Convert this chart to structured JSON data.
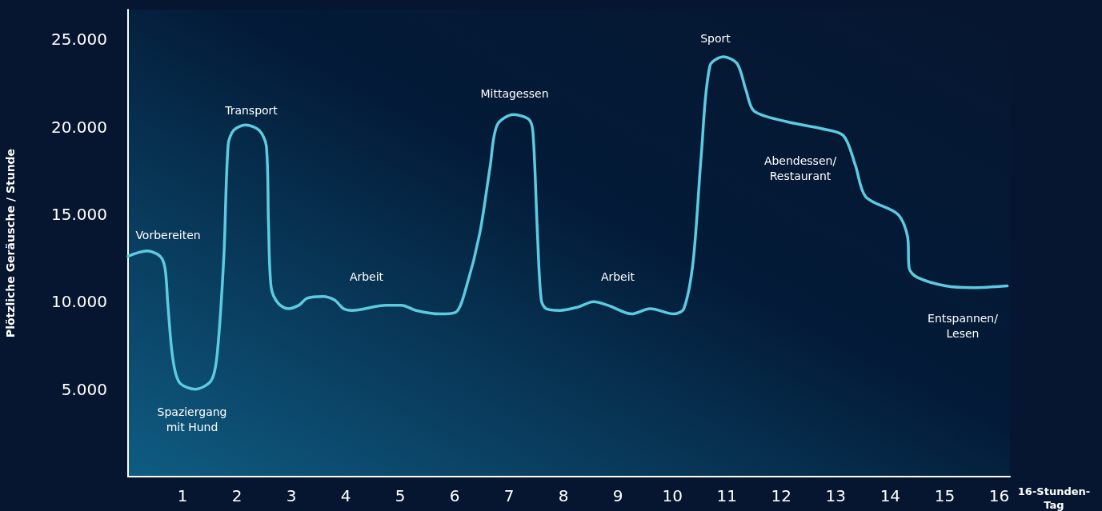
{
  "chart_data": {
    "type": "line",
    "ylabel": "Plötzliche Geräusche / Stunde",
    "xlabel": "16-Stunden-\nTag",
    "xlim": [
      0,
      16.2
    ],
    "xticks": [
      1,
      2,
      3,
      4,
      5,
      6,
      7,
      8,
      9,
      10,
      11,
      12,
      13,
      14,
      15,
      16
    ],
    "ylim": [
      0,
      26700
    ],
    "yticks": [
      {
        "value": 5000,
        "label": "5.000"
      },
      {
        "value": 10000,
        "label": "10.000"
      },
      {
        "value": 15000,
        "label": "15.000"
      },
      {
        "value": 20000,
        "label": "20.000"
      },
      {
        "value": 25000,
        "label": "25.000"
      }
    ],
    "grid": false,
    "marker": "none",
    "line_style": "solid",
    "series": [
      {
        "color": "#5ccbe0",
        "x": [
          0,
          0.35,
          0.59,
          0.68,
          0.73,
          0.82,
          0.94,
          1.23,
          1.53,
          1.64,
          1.76,
          1.84,
          1.94,
          2.16,
          2.41,
          2.54,
          2.58,
          2.63,
          2.76,
          2.94,
          3.14,
          3.29,
          3.58,
          3.79,
          3.96,
          4.11,
          4.74,
          5.02,
          5.29,
          5.73,
          6.02,
          6.21,
          6.46,
          6.65,
          6.78,
          7.08,
          7.37,
          7.44,
          7.52,
          7.59,
          7.68,
          7.93,
          8.27,
          8.55,
          8.81,
          9.25,
          9.59,
          10.03,
          10.21,
          10.38,
          10.53,
          10.69,
          10.94,
          11.19,
          11.35,
          11.5,
          12.09,
          12.73,
          13.14,
          13.36,
          13.55,
          14.14,
          14.32,
          14.35,
          14.49,
          15.02,
          15.52,
          16.15
        ],
        "values": [
          12600,
          12900,
          12600,
          11900,
          9900,
          6800,
          5400,
          5000,
          5500,
          7100,
          12600,
          19000,
          19800,
          20100,
          19800,
          18900,
          14500,
          10800,
          9900,
          9600,
          9800,
          10200,
          10300,
          10100,
          9600,
          9500,
          9800,
          9800,
          9500,
          9300,
          9400,
          10800,
          13900,
          17700,
          20100,
          20700,
          20400,
          19600,
          13900,
          10100,
          9600,
          9500,
          9700,
          10000,
          9800,
          9300,
          9600,
          9300,
          9600,
          12300,
          18400,
          23500,
          24000,
          23600,
          22100,
          20900,
          20300,
          19900,
          19500,
          17800,
          16000,
          15000,
          13700,
          11900,
          11400,
          10900,
          10800,
          10900
        ]
      }
    ],
    "annotations": [
      "Vorbereiten",
      "Spaziergang\nmit Hund",
      "Transport",
      "Arbeit",
      "Mittagessen",
      "Arbeit",
      "Sport",
      "Abendessen/\nRestaurant",
      "Entspannen/\nLesen"
    ]
  }
}
